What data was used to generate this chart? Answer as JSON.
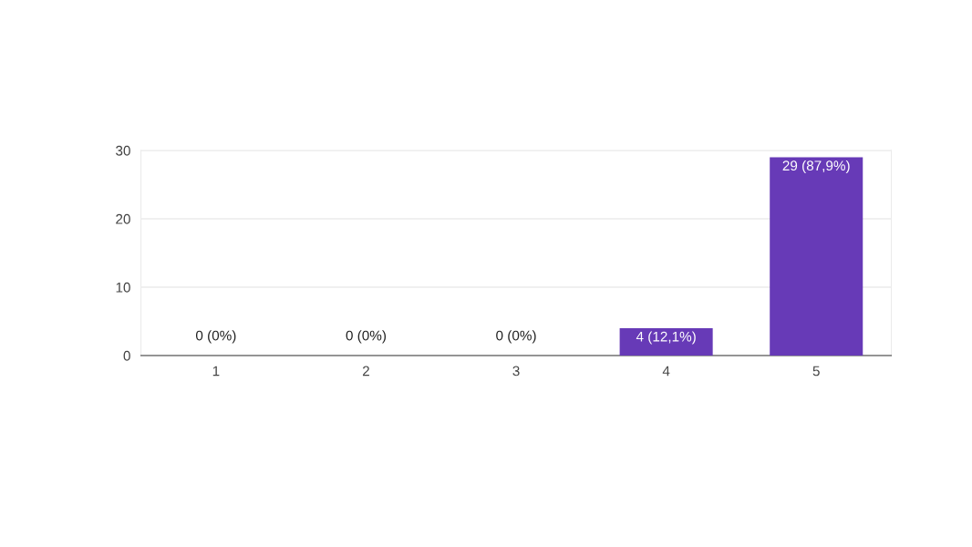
{
  "chart_data": {
    "type": "bar",
    "categories": [
      "1",
      "2",
      "3",
      "4",
      "5"
    ],
    "values": [
      0,
      0,
      0,
      4,
      29
    ],
    "value_labels": [
      "0 (0%)",
      "0 (0%)",
      "0 (0%)",
      "4 (12,1%)",
      "29 (87,9%)"
    ],
    "color": "#673ab7",
    "ylim": [
      0,
      30
    ],
    "yticks": [
      0,
      10,
      20,
      30
    ],
    "grid": "y"
  }
}
